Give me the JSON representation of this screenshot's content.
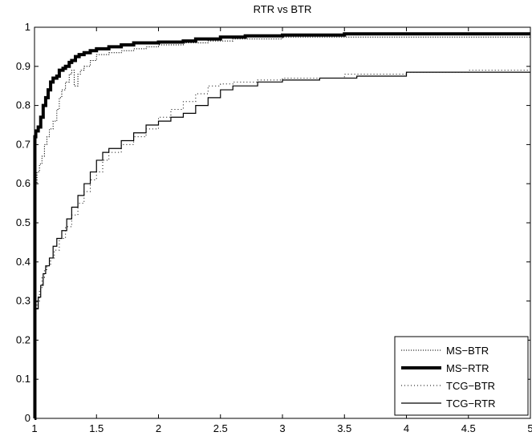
{
  "chart_data": {
    "type": "line",
    "title": "RTR vs BTR",
    "xlabel": "",
    "ylabel": "",
    "xlim": [
      1,
      5
    ],
    "ylim": [
      0,
      1
    ],
    "x_ticks": [
      1,
      1.5,
      2,
      2.5,
      3,
      3.5,
      4,
      4.5,
      5
    ],
    "x_tick_labels": [
      "1",
      "1.5",
      "2",
      "2.5",
      "3",
      "3.5",
      "4",
      "4.5",
      "5"
    ],
    "y_ticks": [
      0,
      0.1,
      0.2,
      0.3,
      0.4,
      0.5,
      0.6,
      0.7,
      0.8,
      0.9,
      1
    ],
    "y_tick_labels": [
      "0",
      "0.1",
      "0.2",
      "0.3",
      "0.4",
      "0.5",
      "0.6",
      "0.7",
      "0.8",
      "0.9",
      "1"
    ],
    "grid": false,
    "legend_position": "bottom-right",
    "series": [
      {
        "name": "MS−BTR",
        "line_style": "dotted-dense",
        "color": "#000000",
        "x": [
          1,
          1.005,
          1.01,
          1.02,
          1.04,
          1.06,
          1.08,
          1.1,
          1.12,
          1.15,
          1.18,
          1.2,
          1.22,
          1.25,
          1.28,
          1.3,
          1.32,
          1.35,
          1.37,
          1.4,
          1.45,
          1.5,
          1.6,
          1.7,
          1.8,
          1.9,
          2,
          2.2,
          2.4,
          2.6,
          2.8,
          3,
          3.5,
          4,
          4.5,
          5
        ],
        "y": [
          0,
          0.56,
          0.6,
          0.63,
          0.65,
          0.67,
          0.7,
          0.72,
          0.74,
          0.76,
          0.79,
          0.82,
          0.84,
          0.86,
          0.88,
          0.89,
          0.85,
          0.88,
          0.89,
          0.9,
          0.915,
          0.93,
          0.935,
          0.94,
          0.945,
          0.95,
          0.955,
          0.96,
          0.965,
          0.97,
          0.97,
          0.975,
          0.975,
          0.975,
          0.975,
          0.98
        ]
      },
      {
        "name": "MS−RTR",
        "line_style": "solid-thick",
        "color": "#000000",
        "x": [
          1,
          1.003,
          1.01,
          1.03,
          1.05,
          1.07,
          1.09,
          1.11,
          1.13,
          1.15,
          1.18,
          1.2,
          1.23,
          1.25,
          1.28,
          1.3,
          1.33,
          1.36,
          1.4,
          1.45,
          1.5,
          1.6,
          1.7,
          1.8,
          2,
          2.2,
          2.3,
          2.5,
          2.7,
          3,
          3.5,
          4,
          4.5,
          5
        ],
        "y": [
          0,
          0.72,
          0.735,
          0.745,
          0.77,
          0.8,
          0.82,
          0.84,
          0.86,
          0.87,
          0.875,
          0.89,
          0.895,
          0.9,
          0.91,
          0.915,
          0.925,
          0.93,
          0.935,
          0.94,
          0.945,
          0.95,
          0.955,
          0.96,
          0.962,
          0.965,
          0.97,
          0.975,
          0.978,
          0.98,
          0.983,
          0.983,
          0.983,
          0.983
        ]
      },
      {
        "name": "TCG−BTR",
        "line_style": "dotted-sparse",
        "color": "#000000",
        "x": [
          1,
          1.005,
          1.01,
          1.02,
          1.04,
          1.06,
          1.08,
          1.1,
          1.13,
          1.16,
          1.2,
          1.25,
          1.3,
          1.35,
          1.4,
          1.45,
          1.5,
          1.55,
          1.6,
          1.7,
          1.8,
          1.9,
          2,
          2.1,
          2.2,
          2.3,
          2.4,
          2.5,
          2.6,
          2.8,
          3,
          3.5,
          4,
          4.5,
          5
        ],
        "y": [
          0,
          0.26,
          0.28,
          0.3,
          0.33,
          0.36,
          0.38,
          0.39,
          0.41,
          0.43,
          0.46,
          0.49,
          0.52,
          0.55,
          0.58,
          0.61,
          0.63,
          0.66,
          0.68,
          0.7,
          0.72,
          0.74,
          0.77,
          0.79,
          0.81,
          0.83,
          0.85,
          0.855,
          0.86,
          0.865,
          0.87,
          0.88,
          0.885,
          0.89,
          0.9
        ]
      },
      {
        "name": "TCG−RTR",
        "line_style": "solid-thin",
        "color": "#000000",
        "x": [
          1,
          1.005,
          1.01,
          1.03,
          1.05,
          1.07,
          1.09,
          1.12,
          1.15,
          1.18,
          1.22,
          1.26,
          1.3,
          1.35,
          1.4,
          1.45,
          1.5,
          1.55,
          1.6,
          1.7,
          1.8,
          1.9,
          2,
          2.1,
          2.2,
          2.3,
          2.4,
          2.5,
          2.6,
          2.8,
          3,
          3.3,
          3.6,
          4,
          4.5,
          5
        ],
        "y": [
          0,
          0.27,
          0.28,
          0.31,
          0.34,
          0.37,
          0.39,
          0.41,
          0.44,
          0.46,
          0.48,
          0.51,
          0.54,
          0.57,
          0.6,
          0.63,
          0.66,
          0.68,
          0.69,
          0.71,
          0.73,
          0.75,
          0.76,
          0.77,
          0.78,
          0.8,
          0.82,
          0.84,
          0.85,
          0.86,
          0.865,
          0.87,
          0.875,
          0.885,
          0.885,
          0.885
        ]
      }
    ]
  }
}
